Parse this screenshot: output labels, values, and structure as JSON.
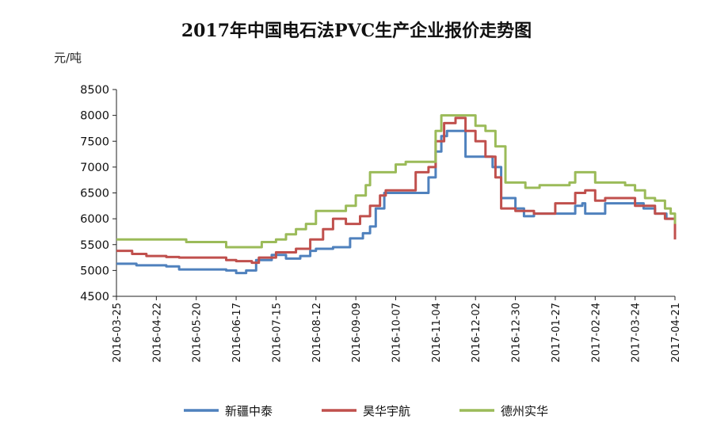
{
  "chart_data": {
    "type": "line",
    "title": "2017年中国电石法PVC生产企业报价走势图",
    "ylabel": "元/吨",
    "xlabel": "",
    "ylim": [
      4500,
      8500
    ],
    "yticks": [
      4500,
      5000,
      5500,
      6000,
      6500,
      7000,
      7500,
      8000,
      8500
    ],
    "xlim": [
      "2016-03-25",
      "2017-04-21"
    ],
    "xticks": [
      "2016-03-25",
      "2016-04-22",
      "2016-05-20",
      "2016-06-17",
      "2016-07-15",
      "2016-08-12",
      "2016-09-09",
      "2016-10-07",
      "2016-11-04",
      "2016-12-02",
      "2016-12-30",
      "2017-01-27",
      "2017-02-24",
      "2017-03-24",
      "2017-04-21"
    ],
    "grid": false,
    "legend_position": "bottom",
    "series": [
      {
        "name": "新疆中泰",
        "color": "#4f81bd",
        "points": [
          [
            "2016-03-25",
            5130
          ],
          [
            "2016-04-08",
            5100
          ],
          [
            "2016-04-29",
            5080
          ],
          [
            "2016-05-08",
            5020
          ],
          [
            "2016-06-10",
            5000
          ],
          [
            "2016-06-17",
            4950
          ],
          [
            "2016-06-24",
            5000
          ],
          [
            "2016-07-01",
            5200
          ],
          [
            "2016-07-12",
            5300
          ],
          [
            "2016-07-22",
            5230
          ],
          [
            "2016-08-01",
            5280
          ],
          [
            "2016-08-08",
            5380
          ],
          [
            "2016-08-12",
            5420
          ],
          [
            "2016-08-24",
            5450
          ],
          [
            "2016-09-05",
            5620
          ],
          [
            "2016-09-14",
            5720
          ],
          [
            "2016-09-19",
            5850
          ],
          [
            "2016-09-23",
            6200
          ],
          [
            "2016-09-29",
            6500
          ],
          [
            "2016-10-15",
            6500
          ],
          [
            "2016-10-25",
            6500
          ],
          [
            "2016-10-30",
            6800
          ],
          [
            "2016-11-04",
            7300
          ],
          [
            "2016-11-08",
            7600
          ],
          [
            "2016-11-12",
            7700
          ],
          [
            "2016-11-20",
            7700
          ],
          [
            "2016-11-25",
            7200
          ],
          [
            "2016-12-06",
            7200
          ],
          [
            "2016-12-14",
            7000
          ],
          [
            "2016-12-20",
            6400
          ],
          [
            "2016-12-30",
            6200
          ],
          [
            "2017-01-05",
            6050
          ],
          [
            "2017-01-12",
            6100
          ],
          [
            "2017-01-30",
            6100
          ],
          [
            "2017-02-10",
            6250
          ],
          [
            "2017-02-15",
            6300
          ],
          [
            "2017-02-17",
            6100
          ],
          [
            "2017-02-28",
            6100
          ],
          [
            "2017-03-03",
            6300
          ],
          [
            "2017-03-20",
            6300
          ],
          [
            "2017-03-30",
            6200
          ],
          [
            "2017-04-07",
            6100
          ],
          [
            "2017-04-15",
            6000
          ],
          [
            "2017-04-21",
            5700
          ]
        ]
      },
      {
        "name": "昊华宇航",
        "color": "#c0504d",
        "points": [
          [
            "2016-03-25",
            5380
          ],
          [
            "2016-04-05",
            5320
          ],
          [
            "2016-04-15",
            5280
          ],
          [
            "2016-04-29",
            5260
          ],
          [
            "2016-05-08",
            5250
          ],
          [
            "2016-06-03",
            5250
          ],
          [
            "2016-06-10",
            5200
          ],
          [
            "2016-06-17",
            5180
          ],
          [
            "2016-06-28",
            5150
          ],
          [
            "2016-07-03",
            5250
          ],
          [
            "2016-07-15",
            5350
          ],
          [
            "2016-07-29",
            5420
          ],
          [
            "2016-08-08",
            5600
          ],
          [
            "2016-08-17",
            5800
          ],
          [
            "2016-08-24",
            6000
          ],
          [
            "2016-09-02",
            5900
          ],
          [
            "2016-09-12",
            6050
          ],
          [
            "2016-09-19",
            6250
          ],
          [
            "2016-09-26",
            6450
          ],
          [
            "2016-09-30",
            6550
          ],
          [
            "2016-10-14",
            6550
          ],
          [
            "2016-10-21",
            6900
          ],
          [
            "2016-10-30",
            7000
          ],
          [
            "2016-11-04",
            7500
          ],
          [
            "2016-11-10",
            7850
          ],
          [
            "2016-11-18",
            7950
          ],
          [
            "2016-11-25",
            7700
          ],
          [
            "2016-12-02",
            7500
          ],
          [
            "2016-12-09",
            7200
          ],
          [
            "2016-12-16",
            6800
          ],
          [
            "2016-12-20",
            6200
          ],
          [
            "2016-12-30",
            6150
          ],
          [
            "2017-01-06",
            6150
          ],
          [
            "2017-01-12",
            6100
          ],
          [
            "2017-01-27",
            6300
          ],
          [
            "2017-02-10",
            6500
          ],
          [
            "2017-02-17",
            6550
          ],
          [
            "2017-02-24",
            6350
          ],
          [
            "2017-03-03",
            6400
          ],
          [
            "2017-03-17",
            6400
          ],
          [
            "2017-03-24",
            6250
          ],
          [
            "2017-04-07",
            6100
          ],
          [
            "2017-04-14",
            6000
          ],
          [
            "2017-04-21",
            5600
          ]
        ]
      },
      {
        "name": "德州实华",
        "color": "#9bbb59",
        "points": [
          [
            "2016-03-25",
            5600
          ],
          [
            "2016-05-06",
            5600
          ],
          [
            "2016-05-13",
            5550
          ],
          [
            "2016-06-03",
            5550
          ],
          [
            "2016-06-10",
            5450
          ],
          [
            "2016-06-28",
            5450
          ],
          [
            "2016-07-05",
            5550
          ],
          [
            "2016-07-15",
            5600
          ],
          [
            "2016-07-22",
            5700
          ],
          [
            "2016-07-29",
            5800
          ],
          [
            "2016-08-05",
            5900
          ],
          [
            "2016-08-12",
            6150
          ],
          [
            "2016-08-26",
            6150
          ],
          [
            "2016-09-02",
            6250
          ],
          [
            "2016-09-09",
            6450
          ],
          [
            "2016-09-16",
            6650
          ],
          [
            "2016-09-19",
            6900
          ],
          [
            "2016-09-30",
            6900
          ],
          [
            "2016-10-07",
            7050
          ],
          [
            "2016-10-14",
            7100
          ],
          [
            "2016-10-29",
            7100
          ],
          [
            "2016-11-04",
            7700
          ],
          [
            "2016-11-08",
            8000
          ],
          [
            "2016-11-25",
            8000
          ],
          [
            "2016-12-02",
            7800
          ],
          [
            "2016-12-09",
            7700
          ],
          [
            "2016-12-16",
            7400
          ],
          [
            "2016-12-23",
            6700
          ],
          [
            "2017-01-03",
            6700
          ],
          [
            "2017-01-06",
            6600
          ],
          [
            "2017-01-16",
            6650
          ],
          [
            "2017-01-30",
            6650
          ],
          [
            "2017-02-06",
            6700
          ],
          [
            "2017-02-10",
            6900
          ],
          [
            "2017-02-17",
            6900
          ],
          [
            "2017-02-24",
            6700
          ],
          [
            "2017-03-17",
            6650
          ],
          [
            "2017-03-24",
            6550
          ],
          [
            "2017-03-31",
            6400
          ],
          [
            "2017-04-07",
            6350
          ],
          [
            "2017-04-14",
            6200
          ],
          [
            "2017-04-18",
            6100
          ],
          [
            "2017-04-21",
            5900
          ]
        ]
      }
    ]
  }
}
